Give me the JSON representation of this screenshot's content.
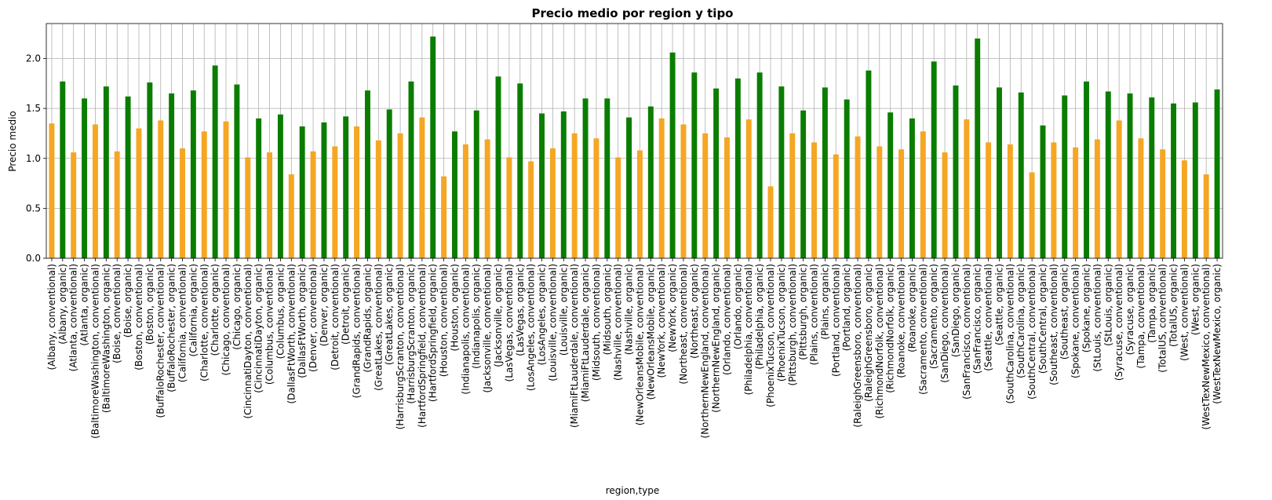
{
  "chart_data": {
    "type": "bar",
    "title": "Precio medio por region y tipo",
    "xlabel": "region,type",
    "ylabel": "Precio medio",
    "ylim": [
      0,
      2.35
    ],
    "yticks": [
      "0.0",
      "0.5",
      "1.0",
      "1.5",
      "2.0"
    ],
    "grid": true,
    "colors": {
      "conventional": "#f5a623",
      "organic": "#0a7d00"
    },
    "categories": [
      "(Albany, conventional)",
      "(Albany, organic)",
      "(Atlanta, conventional)",
      "(Atlanta, organic)",
      "(BaltimoreWashington, conventional)",
      "(BaltimoreWashington, organic)",
      "(Boise, conventional)",
      "(Boise, organic)",
      "(Boston, conventional)",
      "(Boston, organic)",
      "(BuffaloRochester, conventional)",
      "(BuffaloRochester, organic)",
      "(California, conventional)",
      "(California, organic)",
      "(Charlotte, conventional)",
      "(Charlotte, organic)",
      "(Chicago, conventional)",
      "(Chicago, organic)",
      "(CincinnatiDayton, conventional)",
      "(CincinnatiDayton, organic)",
      "(Columbus, conventional)",
      "(Columbus, organic)",
      "(DallasFtWorth, conventional)",
      "(DallasFtWorth, organic)",
      "(Denver, conventional)",
      "(Denver, organic)",
      "(Detroit, conventional)",
      "(Detroit, organic)",
      "(GrandRapids, conventional)",
      "(GrandRapids, organic)",
      "(GreatLakes, conventional)",
      "(GreatLakes, organic)",
      "(HarrisburgScranton, conventional)",
      "(HarrisburgScranton, organic)",
      "(HartfordSpringfield, conventional)",
      "(HartfordSpringfield, organic)",
      "(Houston, conventional)",
      "(Houston, organic)",
      "(Indianapolis, conventional)",
      "(Indianapolis, organic)",
      "(Jacksonville, conventional)",
      "(Jacksonville, organic)",
      "(LasVegas, conventional)",
      "(LasVegas, organic)",
      "(LosAngeles, conventional)",
      "(LosAngeles, organic)",
      "(Louisville, conventional)",
      "(Louisville, organic)",
      "(MiamiFtLauderdale, conventional)",
      "(MiamiFtLauderdale, organic)",
      "(Midsouth, conventional)",
      "(Midsouth, organic)",
      "(Nashville, conventional)",
      "(Nashville, organic)",
      "(NewOrleansMobile, conventional)",
      "(NewOrleansMobile, organic)",
      "(NewYork, conventional)",
      "(NewYork, organic)",
      "(Northeast, conventional)",
      "(Northeast, organic)",
      "(NorthernNewEngland, conventional)",
      "(NorthernNewEngland, organic)",
      "(Orlando, conventional)",
      "(Orlando, organic)",
      "(Philadelphia, conventional)",
      "(Philadelphia, organic)",
      "(PhoenixTucson, conventional)",
      "(PhoenixTucson, organic)",
      "(Pittsburgh, conventional)",
      "(Pittsburgh, organic)",
      "(Plains, conventional)",
      "(Plains, organic)",
      "(Portland, conventional)",
      "(Portland, organic)",
      "(RaleighGreensboro, conventional)",
      "(RaleighGreensboro, organic)",
      "(RichmondNorfolk, conventional)",
      "(RichmondNorfolk, organic)",
      "(Roanoke, conventional)",
      "(Roanoke, organic)",
      "(Sacramento, conventional)",
      "(Sacramento, organic)",
      "(SanDiego, conventional)",
      "(SanDiego, organic)",
      "(SanFrancisco, conventional)",
      "(SanFrancisco, organic)",
      "(Seattle, conventional)",
      "(Seattle, organic)",
      "(SouthCarolina, conventional)",
      "(SouthCarolina, organic)",
      "(SouthCentral, conventional)",
      "(SouthCentral, organic)",
      "(Southeast, conventional)",
      "(Southeast, organic)",
      "(Spokane, conventional)",
      "(Spokane, organic)",
      "(StLouis, conventional)",
      "(StLouis, organic)",
      "(Syracuse, conventional)",
      "(Syracuse, organic)",
      "(Tampa, conventional)",
      "(Tampa, organic)",
      "(TotalUS, conventional)",
      "(TotalUS, organic)",
      "(West, conventional)",
      "(West, organic)",
      "(WestTexNewMexico, conventional)",
      "(WestTexNewMexico, organic)"
    ],
    "values": [
      1.35,
      1.77,
      1.06,
      1.6,
      1.34,
      1.72,
      1.07,
      1.62,
      1.3,
      1.76,
      1.38,
      1.65,
      1.1,
      1.68,
      1.27,
      1.93,
      1.37,
      1.74,
      1.01,
      1.4,
      1.06,
      1.44,
      0.84,
      1.32,
      1.07,
      1.36,
      1.12,
      1.42,
      1.32,
      1.68,
      1.18,
      1.49,
      1.25,
      1.77,
      1.41,
      2.22,
      0.82,
      1.27,
      1.14,
      1.48,
      1.19,
      1.82,
      1.01,
      1.75,
      0.97,
      1.45,
      1.1,
      1.47,
      1.25,
      1.6,
      1.2,
      1.6,
      1.01,
      1.41,
      1.08,
      1.52,
      1.4,
      2.06,
      1.34,
      1.86,
      1.25,
      1.7,
      1.21,
      1.8,
      1.39,
      1.86,
      0.72,
      1.72,
      1.25,
      1.48,
      1.16,
      1.71,
      1.04,
      1.59,
      1.22,
      1.88,
      1.12,
      1.46,
      1.09,
      1.4,
      1.27,
      1.97,
      1.06,
      1.73,
      1.39,
      2.2,
      1.16,
      1.71,
      1.14,
      1.66,
      0.86,
      1.33,
      1.16,
      1.63,
      1.11,
      1.77,
      1.19,
      1.67,
      1.38,
      1.65,
      1.2,
      1.61,
      1.09,
      1.55,
      0.98,
      1.56,
      0.84,
      1.69
    ]
  }
}
